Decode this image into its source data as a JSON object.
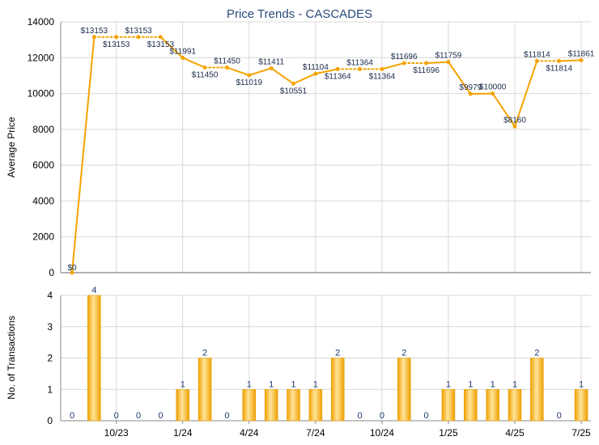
{
  "chart_data": [
    {
      "type": "line",
      "title": "Price Trends - CASCADES",
      "ylabel": "Average Price",
      "ylim": [
        0,
        14000
      ],
      "yticks": [
        0,
        2000,
        4000,
        6000,
        8000,
        10000,
        12000,
        14000
      ],
      "grid": true,
      "color": "#f5a300",
      "months": [
        "8/23",
        "9/23",
        "10/23",
        "11/23",
        "12/23",
        "1/24",
        "2/24",
        "3/24",
        "4/24",
        "5/24",
        "6/24",
        "7/24",
        "8/24",
        "9/24",
        "10/24",
        "11/24",
        "12/24",
        "1/25",
        "2/25",
        "3/25",
        "4/25",
        "5/25",
        "6/25",
        "7/25"
      ],
      "values": [
        0,
        13153,
        13153,
        13153,
        13153,
        11991,
        11450,
        11450,
        11019,
        11411,
        10551,
        11104,
        11364,
        11364,
        11364,
        11696,
        11696,
        11759,
        9979,
        10000,
        8160,
        11814,
        11814,
        11861
      ],
      "labels": [
        "$0",
        "$13153",
        "$13153",
        "$13153",
        "$13153",
        "$11991",
        "$11450",
        "$11450",
        "$11019",
        "$11411",
        "$10551",
        "$11104",
        "$11364",
        "$11364",
        "$11364",
        "$11696",
        "$11696",
        "$11759",
        "$9979",
        "$10000",
        "$8160",
        "$11814",
        "$11814",
        "$11861"
      ],
      "dotted_segments": [
        [
          1,
          2
        ],
        [
          2,
          3
        ],
        [
          3,
          4
        ],
        [
          6,
          7
        ],
        [
          12,
          13
        ],
        [
          13,
          14
        ],
        [
          15,
          16
        ],
        [
          21,
          22
        ]
      ]
    },
    {
      "type": "bar",
      "ylabel": "No. of Transactions",
      "ylim": [
        0,
        4
      ],
      "yticks": [
        0,
        1,
        2,
        3,
        4
      ],
      "grid": true,
      "color": "#f5a300",
      "values": [
        0,
        4,
        0,
        0,
        0,
        1,
        2,
        0,
        1,
        1,
        1,
        1,
        2,
        0,
        0,
        2,
        0,
        1,
        1,
        1,
        1,
        2,
        0,
        1
      ],
      "xtick_labels": [
        "10/23",
        "1/24",
        "4/24",
        "7/24",
        "10/24",
        "1/25",
        "4/25",
        "7/25"
      ],
      "xtick_months": [
        2,
        5,
        8,
        11,
        14,
        17,
        20,
        23
      ]
    }
  ]
}
